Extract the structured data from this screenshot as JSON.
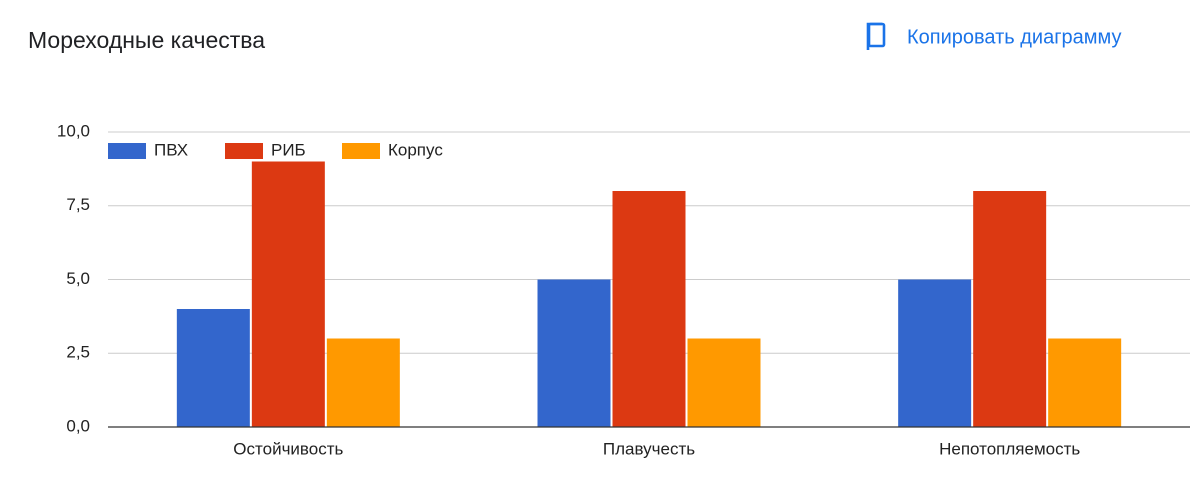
{
  "chart_data": {
    "type": "bar",
    "title": "Мореходные качества",
    "categories": [
      "Остойчивость",
      "Плавучесть",
      "Непотопляемость"
    ],
    "series": [
      {
        "name": "ПВХ",
        "color": "#3366cc",
        "values": [
          4,
          5,
          5
        ]
      },
      {
        "name": "РИБ",
        "color": "#dc3912",
        "values": [
          9,
          8,
          8
        ]
      },
      {
        "name": "Корпус",
        "color": "#ff9900",
        "values": [
          3,
          3,
          3
        ]
      }
    ],
    "ylim": [
      0,
      10
    ],
    "yticks": [
      {
        "value": 0,
        "label": "0,0"
      },
      {
        "value": 2.5,
        "label": "2,5"
      },
      {
        "value": 5,
        "label": "5,0"
      },
      {
        "value": 7.5,
        "label": "7,5"
      },
      {
        "value": 10,
        "label": "10,0"
      }
    ],
    "grid": true,
    "legend": "top-left"
  },
  "toolbar": {
    "button": "Копировать диаграмму"
  }
}
